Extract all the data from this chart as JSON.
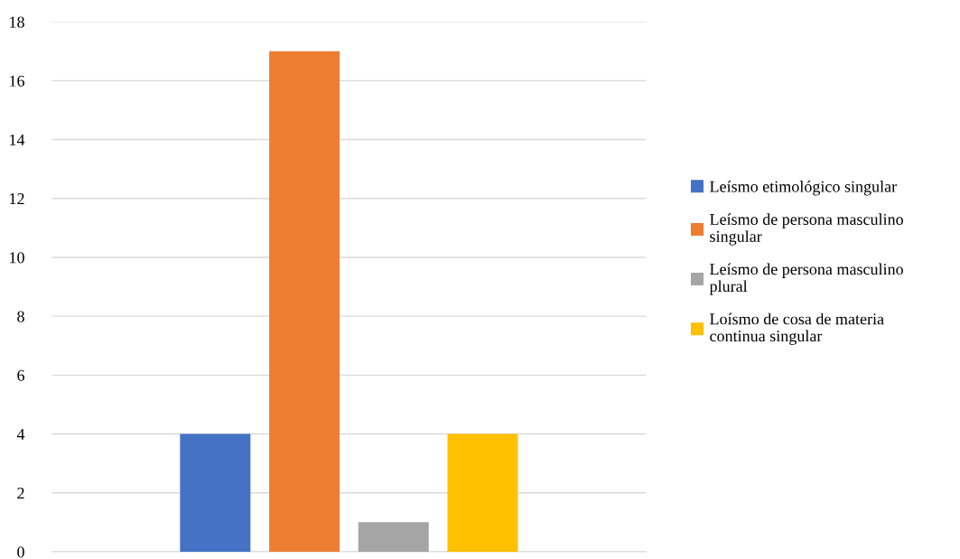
{
  "chart_data": {
    "type": "bar",
    "categories": [
      null
    ],
    "series": [
      {
        "name": "Leísmo etimológico singular",
        "color": "#4472c4",
        "values": [
          4
        ]
      },
      {
        "name": "Leísmo de persona masculino singular",
        "color": "#ed7d31",
        "values": [
          17
        ]
      },
      {
        "name": "Leísmo de persona masculino plural",
        "color": "#a5a5a5",
        "values": [
          1
        ]
      },
      {
        "name": "Loísmo de cosa de materia continua singular",
        "color": "#ffc000",
        "values": [
          4
        ]
      }
    ],
    "ylim": [
      0,
      18
    ],
    "yticks": [
      0,
      2,
      4,
      6,
      8,
      10,
      12,
      14,
      16,
      18
    ],
    "grid": "y",
    "legend": "right",
    "tick_labels": "y"
  }
}
